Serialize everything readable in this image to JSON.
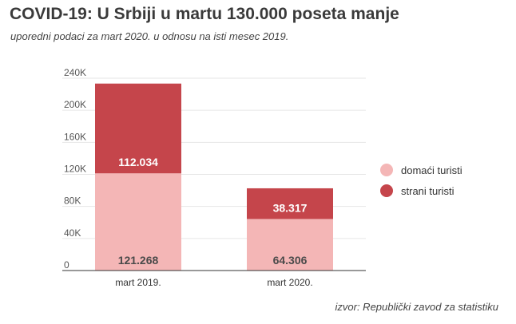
{
  "header": {
    "title": "COVID-19: U Srbiji u martu 130.000 poseta manje",
    "subtitle": "uporedni podaci za mart 2020. u odnosu na isti mesec 2019."
  },
  "footer": {
    "source": "izvor: Republički zavod za statistiku"
  },
  "colors": {
    "domestic": "#f4b6b6",
    "foreign": "#c5454b",
    "grid": "#e6e6e6",
    "axis": "#333333"
  },
  "chart_data": {
    "type": "bar",
    "stacked": true,
    "categories": [
      "mart 2019.",
      "mart 2020."
    ],
    "series": [
      {
        "name": "domaći turisti",
        "values": [
          121268,
          64306
        ],
        "labels": [
          "121.268",
          "64.306"
        ],
        "color": "#f4b6b6"
      },
      {
        "name": "strani turisti",
        "values": [
          112034,
          38317
        ],
        "labels": [
          "112.034",
          "38.317"
        ],
        "color": "#c5454b"
      }
    ],
    "ylim": [
      0,
      240000
    ],
    "yticks": [
      0,
      40000,
      80000,
      120000,
      160000,
      200000,
      240000
    ],
    "ytick_labels": [
      "0",
      "40K",
      "80K",
      "120K",
      "160K",
      "200K",
      "240K"
    ],
    "grid": true,
    "legend_position": "right"
  }
}
